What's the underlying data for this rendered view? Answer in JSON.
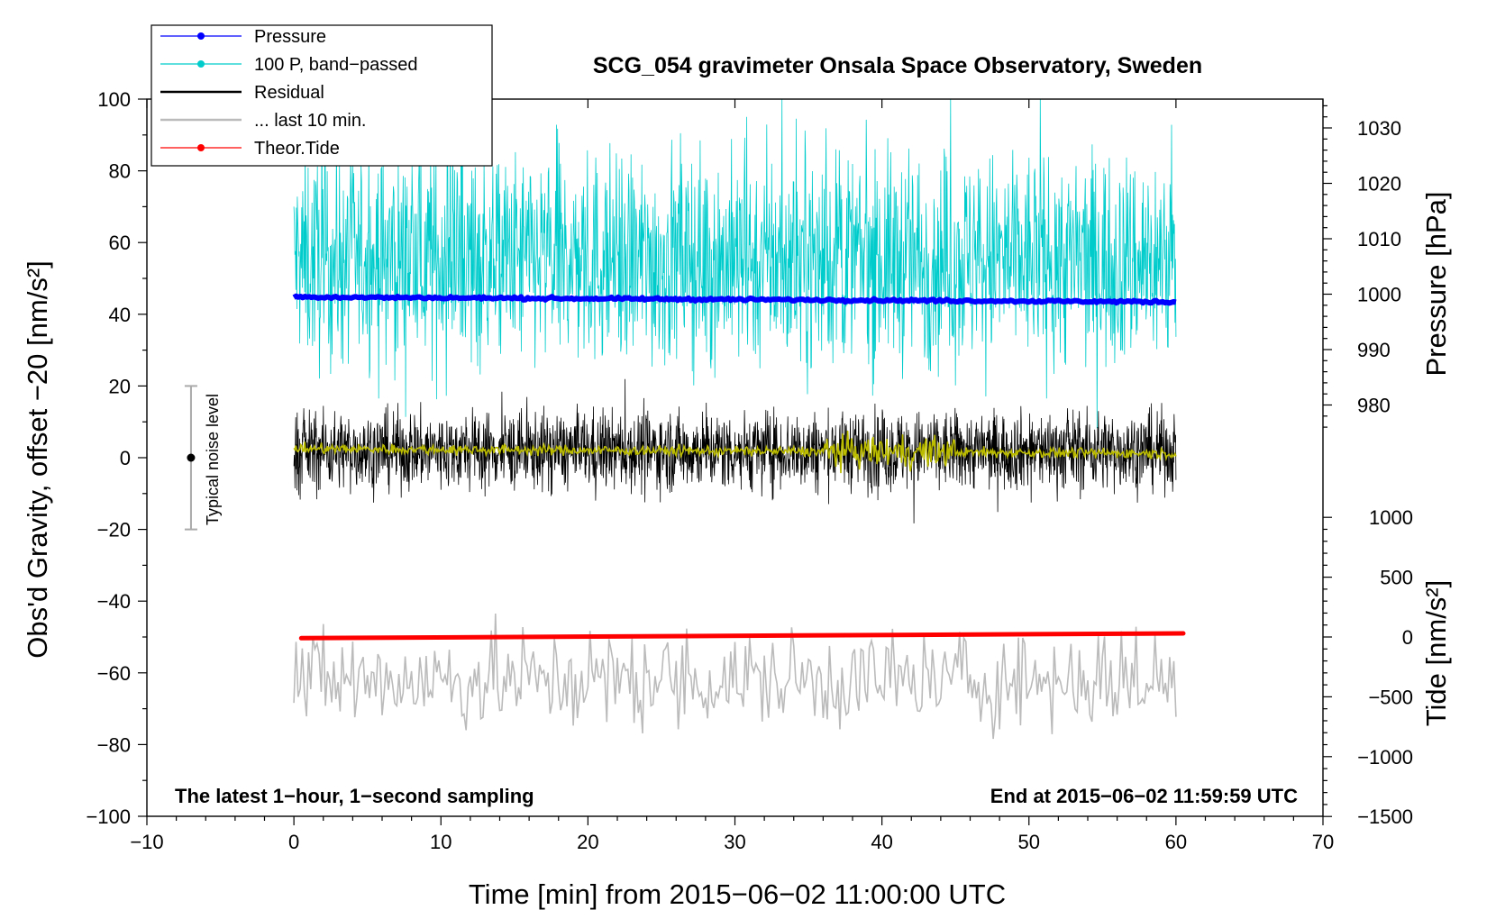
{
  "chart_data": {
    "type": "line",
    "title": "SCG_054 gravimeter Onsala Space Observatory, Sweden",
    "xlabel": "Time [min] from 2015−06−02 11:00:00 UTC",
    "ylabel_left": "Obs'd Gravity, offset −20 [nm/s²]",
    "ylabel_right_pressure": "Pressure [hPa]",
    "ylabel_right_tide": "Tide [nm/s²]",
    "xlim": [
      -10,
      70
    ],
    "ylim": [
      -100,
      100
    ],
    "x_ticks": [
      "−10",
      "0",
      "10",
      "20",
      "30",
      "40",
      "50",
      "60",
      "70"
    ],
    "x_tick_values": [
      -10,
      0,
      10,
      20,
      30,
      40,
      50,
      60,
      70
    ],
    "y_ticks": [
      "−100",
      "−80",
      "−60",
      "−40",
      "−20",
      "0",
      "20",
      "40",
      "60",
      "80",
      "100"
    ],
    "y_tick_values": [
      -100,
      -80,
      -60,
      -40,
      -20,
      0,
      20,
      40,
      60,
      80,
      100
    ],
    "pressure_axis": {
      "range_hpa": [
        975,
        1035
      ],
      "ticks": [
        "980",
        "990",
        "1000",
        "1010",
        "1020",
        "1030"
      ],
      "tick_values": [
        980,
        990,
        1000,
        1010,
        1020,
        1030
      ]
    },
    "tide_axis": {
      "range": [
        -1500,
        1000
      ],
      "ticks": [
        "1000",
        "500",
        "0",
        "−500",
        "−1000",
        "−1500"
      ],
      "tick_values": [
        1000,
        500,
        0,
        -500,
        -1000,
        -1500
      ]
    },
    "annotation_left": "The latest 1−hour, 1−second sampling",
    "annotation_right": "End at 2015−06−02 11:59:59 UTC",
    "noise_bar": {
      "label": "Typical noise level",
      "x": -7,
      "center": 0,
      "low": -20,
      "high": 20
    },
    "legend": [
      {
        "label": "Pressure",
        "color": "#0000ff",
        "marker": true
      },
      {
        "label": "100 P, band−passed",
        "color": "#00cccc",
        "marker": true
      },
      {
        "label": "Residual",
        "color": "#000000",
        "marker": false
      },
      {
        "label": "... last 10 min.",
        "color": "#bbbbbb",
        "marker": false
      },
      {
        "label": "Theor.Tide",
        "color": "#ff0000",
        "marker": true
      }
    ],
    "series": [
      {
        "name": "Pressure",
        "axis": "pressure_hpa",
        "color": "#0000ff",
        "x": [
          0,
          60
        ],
        "values": [
          999.5,
          998.6
        ]
      },
      {
        "name": "100 P, band−passed",
        "axis": "left",
        "color": "#00cccc",
        "x_range": [
          0,
          60
        ],
        "mean": 55,
        "min": 5,
        "max": 100
      },
      {
        "name": "Residual",
        "axis": "left",
        "color": "#000000",
        "x_range": [
          0,
          60
        ],
        "mean": 2,
        "min": -25,
        "max": 24
      },
      {
        "name": "Residual smoothed",
        "axis": "left",
        "color": "#bbbb00",
        "x_range": [
          0,
          60
        ],
        "x": [
          0,
          60
        ],
        "values": [
          2.5,
          1.2
        ]
      },
      {
        "name": "... last 10 min.",
        "axis": "left",
        "color": "#bbbbbb",
        "x_range": [
          0,
          60
        ],
        "mean": -62,
        "min": -82,
        "max": -35
      },
      {
        "name": "Theor.Tide",
        "axis": "tide",
        "color": "#ff0000",
        "x": [
          0.5,
          60.5
        ],
        "values": [
          -10,
          30
        ]
      }
    ]
  }
}
